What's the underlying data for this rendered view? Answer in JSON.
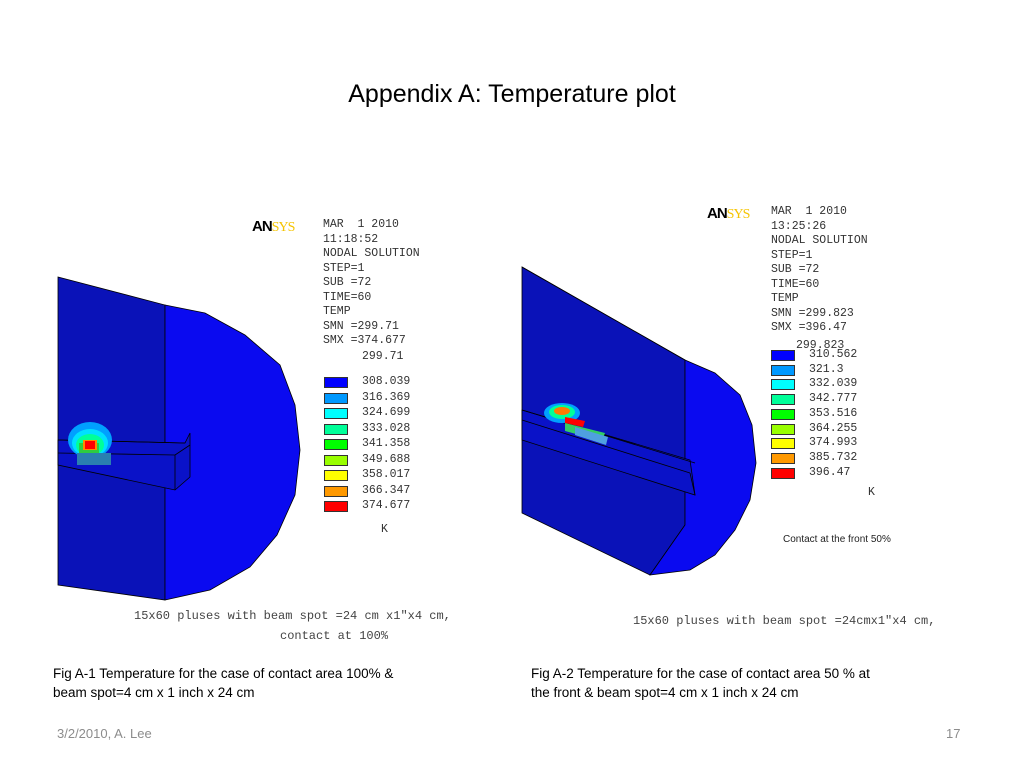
{
  "slide": {
    "title": "Appendix A: Temperature plot",
    "footer_left": "3/2/2010, A. Lee",
    "page_number": "17"
  },
  "fig1": {
    "logo_an": "AN",
    "logo_sys": "SYS",
    "header_lines": [
      "MAR  1 2010",
      "11:18:52",
      "NODAL SOLUTION",
      "STEP=1",
      "SUB =72",
      "TIME=60",
      "TEMP",
      "SMN =299.71",
      "SMX =374.677"
    ],
    "legend_min": "299.71",
    "legend": [
      {
        "color": "#0000ff",
        "value": "308.039"
      },
      {
        "color": "#0099ff",
        "value": "316.369"
      },
      {
        "color": "#00ffff",
        "value": "324.699"
      },
      {
        "color": "#00ff99",
        "value": "333.028"
      },
      {
        "color": "#00ff00",
        "value": "341.358"
      },
      {
        "color": "#99ff00",
        "value": "349.688"
      },
      {
        "color": "#ffff00",
        "value": "358.017"
      },
      {
        "color": "#ff9900",
        "value": "366.347"
      },
      {
        "color": "#ff0000",
        "value": "374.677"
      }
    ],
    "unit": "K",
    "note_line1": "15x60 pluses with beam spot =24 cm x1\"x4 cm,",
    "note_line2": "contact at 100%",
    "caption_line1": "Fig A-1 Temperature for the case of  contact area 100% &",
    "caption_line2": "beam spot=4 cm x 1 inch x 24 cm"
  },
  "fig2": {
    "logo_an": "AN",
    "logo_sys": "SYS",
    "header_lines": [
      "MAR  1 2010",
      "13:25:26",
      "NODAL SOLUTION",
      "STEP=1",
      "SUB =72",
      "TIME=60",
      "TEMP",
      "SMN =299.823",
      "SMX =396.47"
    ],
    "legend_min": "299.823",
    "legend": [
      {
        "color": "#0000ff",
        "value": "310.562"
      },
      {
        "color": "#0099ff",
        "value": "321.3"
      },
      {
        "color": "#00ffff",
        "value": "332.039"
      },
      {
        "color": "#00ff99",
        "value": "342.777"
      },
      {
        "color": "#00ff00",
        "value": "353.516"
      },
      {
        "color": "#99ff00",
        "value": "364.255"
      },
      {
        "color": "#ffff00",
        "value": "374.993"
      },
      {
        "color": "#ff9900",
        "value": "385.732"
      },
      {
        "color": "#ff0000",
        "value": "396.47"
      }
    ],
    "unit": "K",
    "contact_note": "Contact at the front 50%",
    "note_line1": "15x60 pluses with beam spot =24cmx1\"x4 cm,",
    "caption_line1": "Fig A-2 Temperature for the case of  contact area 50 % at",
    "caption_line2": "the front & beam spot=4 cm x 1 inch x 24 cm"
  }
}
